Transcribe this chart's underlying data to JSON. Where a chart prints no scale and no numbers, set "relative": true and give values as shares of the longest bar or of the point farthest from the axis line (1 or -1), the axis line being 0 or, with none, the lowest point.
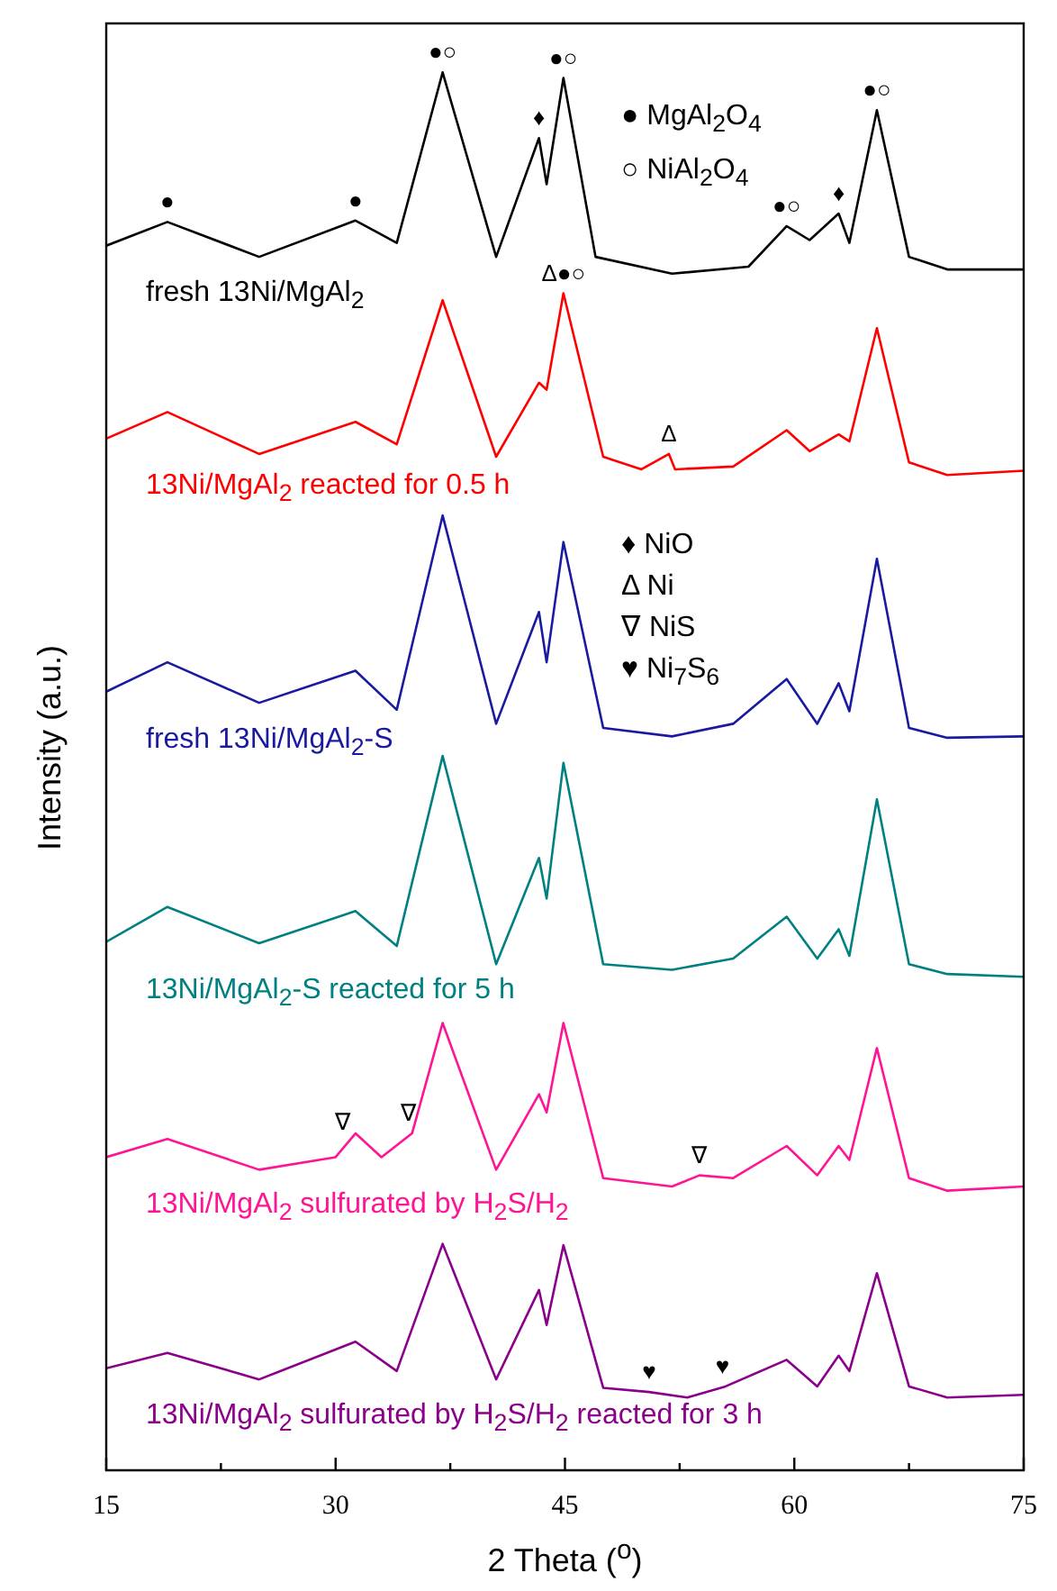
{
  "chart_data": {
    "type": "line",
    "relative": true,
    "xlabel": "2 Theta ($^{o}$)",
    "ylabel": "Intensity (a.u.)",
    "xlim": [
      15,
      75
    ],
    "xticks": [
      15,
      {
        "value": 22.5,
        "label": null
      },
      30,
      {
        "value": 37.5,
        "label": null
      },
      45,
      {
        "value": 52.5,
        "label": null
      },
      60,
      {
        "value": 67.5,
        "label": null
      },
      75
    ],
    "tick_labels": "x",
    "marker": "none",
    "series": [
      {
        "name": "fresh 13Ni/MgAl$_{2}$",
        "color": "#000000",
        "x": [
          15,
          19,
          25,
          31.3,
          34,
          37,
          40.5,
          43.3,
          43.8,
          44.9,
          47,
          52,
          57,
          59.5,
          61,
          62.9,
          63.6,
          65.4,
          67.5,
          70,
          75
        ],
        "values": [
          0.876,
          0.893,
          0.868,
          0.894,
          0.878,
          1.0,
          0.868,
          0.953,
          0.92,
          0.996,
          0.868,
          0.856,
          0.861,
          0.89,
          0.88,
          0.899,
          0.878,
          0.973,
          0.868,
          0.859,
          0.859
        ]
      },
      {
        "name": "13Ni/MgAl$_{2}$ reacted for 0.5 h",
        "color": "#ff0000",
        "x": [
          15,
          19,
          25,
          31.3,
          34,
          37,
          40.5,
          43.3,
          43.8,
          44.9,
          47.5,
          50,
          51.8,
          52.2,
          56,
          59.5,
          61,
          62.9,
          63.6,
          65.4,
          67.5,
          70,
          75
        ],
        "values": [
          0.738,
          0.757,
          0.727,
          0.75,
          0.734,
          0.837,
          0.725,
          0.778,
          0.773,
          0.842,
          0.725,
          0.716,
          0.727,
          0.716,
          0.718,
          0.744,
          0.729,
          0.741,
          0.736,
          0.817,
          0.721,
          0.712,
          0.715
        ]
      },
      {
        "name": "fresh 13Ni/MgAl$_{2}$-S",
        "color": "#1a1aa0",
        "x": [
          15,
          19,
          25,
          31.3,
          34,
          37,
          40.5,
          43.3,
          43.8,
          44.9,
          47.5,
          52,
          56,
          59.5,
          61.5,
          62.9,
          63.6,
          65.4,
          67.5,
          70,
          75
        ],
        "values": [
          0.557,
          0.578,
          0.549,
          0.572,
          0.544,
          0.683,
          0.534,
          0.614,
          0.578,
          0.664,
          0.531,
          0.525,
          0.534,
          0.566,
          0.534,
          0.563,
          0.543,
          0.652,
          0.531,
          0.524,
          0.525
        ]
      },
      {
        "name": "13Ni/MgAl$_{2}$-S reacted for 5 h",
        "color": "#008080",
        "x": [
          15,
          19,
          25,
          31.3,
          34,
          37,
          40.5,
          43.3,
          43.8,
          44.9,
          47.5,
          52,
          56,
          59.5,
          61.5,
          62.9,
          63.6,
          65.4,
          67.5,
          70,
          75
        ],
        "values": [
          0.378,
          0.403,
          0.377,
          0.4,
          0.375,
          0.511,
          0.362,
          0.438,
          0.409,
          0.506,
          0.362,
          0.358,
          0.366,
          0.396,
          0.366,
          0.387,
          0.368,
          0.48,
          0.362,
          0.355,
          0.353
        ]
      },
      {
        "name": "13Ni/MgAl$_{2}$ sulfurated by H$_{2}$S/H$_{2}$",
        "color": "#ff1493",
        "x": [
          15,
          19,
          25,
          30,
          31.3,
          33,
          35,
          37,
          40.5,
          43.3,
          43.8,
          44.9,
          47.5,
          52,
          53.8,
          56,
          59.5,
          61.5,
          62.9,
          63.6,
          65.4,
          67.5,
          70,
          75
        ],
        "values": [
          0.224,
          0.237,
          0.215,
          0.224,
          0.241,
          0.224,
          0.241,
          0.32,
          0.215,
          0.269,
          0.256,
          0.32,
          0.209,
          0.203,
          0.211,
          0.209,
          0.232,
          0.211,
          0.232,
          0.222,
          0.302,
          0.209,
          0.2,
          0.203
        ]
      },
      {
        "name": "13Ni/MgAl$_{2}$ sulfurated by H$_{2}$S/H$_{2}$ reacted for 3 h",
        "color": "#8b008b",
        "x": [
          15,
          19,
          25,
          31.3,
          34,
          37,
          40.5,
          43.3,
          43.8,
          44.9,
          47.5,
          50.5,
          53,
          55.5,
          59.5,
          61.5,
          62.9,
          63.6,
          65.4,
          67.5,
          70,
          75
        ],
        "values": [
          0.073,
          0.084,
          0.065,
          0.092,
          0.071,
          0.162,
          0.065,
          0.129,
          0.104,
          0.161,
          0.059,
          0.056,
          0.052,
          0.06,
          0.079,
          0.06,
          0.082,
          0.071,
          0.141,
          0.06,
          0.052,
          0.054
        ]
      }
    ],
    "annotations": [
      {
        "text": "●",
        "x": 19,
        "y": 0.893
      },
      {
        "text": "●",
        "x": 31.3,
        "y": 0.894
      },
      {
        "text": "●○",
        "x": 37,
        "y": 1.0
      },
      {
        "text": "♦",
        "x": 43.3,
        "y": 0.953
      },
      {
        "text": "●○",
        "x": 44.9,
        "y": 0.996
      },
      {
        "text": "●○",
        "x": 59.5,
        "y": 0.89
      },
      {
        "text": "♦",
        "x": 62.9,
        "y": 0.899
      },
      {
        "text": "●○",
        "x": 65.4,
        "y": 0.973
      },
      {
        "text": "Δ●○",
        "x": 44.9,
        "y": 0.842
      },
      {
        "text": "Δ",
        "x": 51.8,
        "y": 0.727
      },
      {
        "text": "∇",
        "x": 30.5,
        "y": 0.235
      },
      {
        "text": "∇",
        "x": 34.8,
        "y": 0.241
      },
      {
        "text": "∇",
        "x": 53.8,
        "y": 0.211
      },
      {
        "text": "♥",
        "x": 50.5,
        "y": 0.056
      },
      {
        "text": "♥",
        "x": 55.3,
        "y": 0.06
      },
      "● MgAl$_{2}$O$_{4}$",
      "○ NiAl$_{2}$O$_{4}$",
      "♦ NiO",
      "Δ Ni",
      "∇ NiS",
      "♥ Ni$_{7}$S$_{6}$"
    ]
  }
}
